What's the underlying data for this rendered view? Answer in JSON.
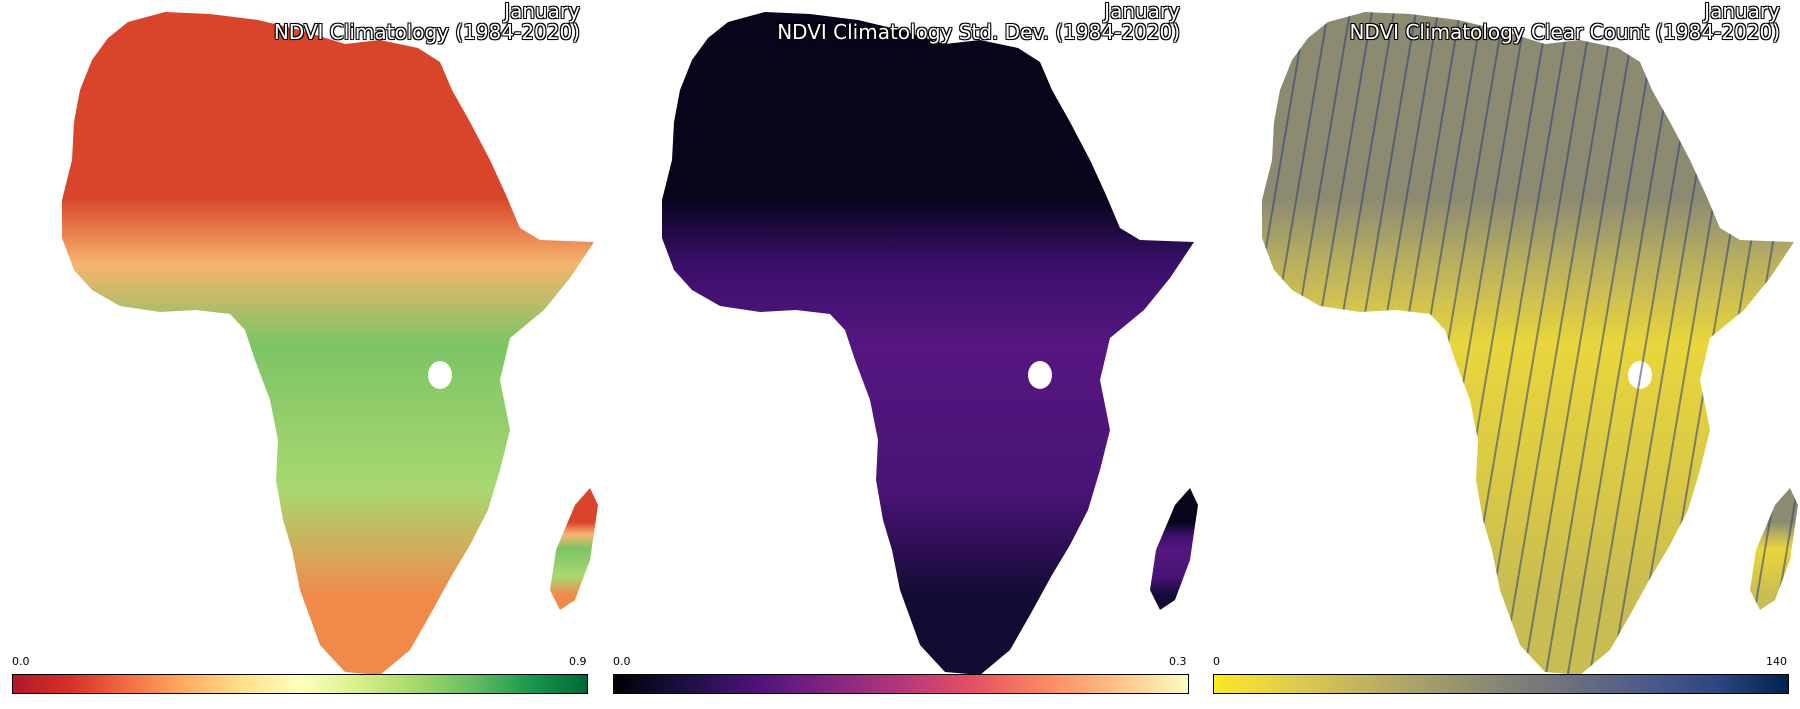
{
  "panels": [
    {
      "month": "January",
      "title": "NDVI Climatology (1984-2020)",
      "colorbar": {
        "min_label": "0.0",
        "max_label": "0.9",
        "colors": [
          "#b2182b",
          "#d73027",
          "#f46d43",
          "#fdae61",
          "#fee08b",
          "#ffffbf",
          "#d9ef8b",
          "#a6d96a",
          "#66bd63",
          "#1a9850",
          "#006837"
        ]
      },
      "map_fill": {
        "north": "#d9452b",
        "sahel": "#f6b46e",
        "central": "#7cc465",
        "south": "#a8d870",
        "southwest": "#f08a4b"
      }
    },
    {
      "month": "January",
      "title": "NDVI Climatology Std. Dev. (1984-2020)",
      "colorbar": {
        "min_label": "0.0",
        "max_label": "0.3",
        "colors": [
          "#000004",
          "#1c1044",
          "#4f127b",
          "#812581",
          "#b5367a",
          "#e55064",
          "#fb8761",
          "#fec287",
          "#fcfdbf"
        ]
      },
      "map_fill": {
        "north": "#06051a",
        "sahel": "#3a0f6b",
        "central": "#55167f",
        "south": "#4a1478",
        "southwest": "#140b35"
      }
    },
    {
      "month": "January",
      "title": "NDVI Climatology Clear Count (1984-2020)",
      "colorbar": {
        "min_label": "0",
        "max_label": "140",
        "colors": [
          "#fde725",
          "#e2cf4a",
          "#c3b55d",
          "#a39d6b",
          "#858575",
          "#6a6f7c",
          "#4d5a8a",
          "#2f4682",
          "#00224e"
        ]
      },
      "map_fill": {
        "north": "#8d8a72",
        "sahel": "#b9b05f",
        "central": "#e9d53c",
        "south": "#d8c846",
        "southwest": "#c9bc52"
      }
    }
  ]
}
